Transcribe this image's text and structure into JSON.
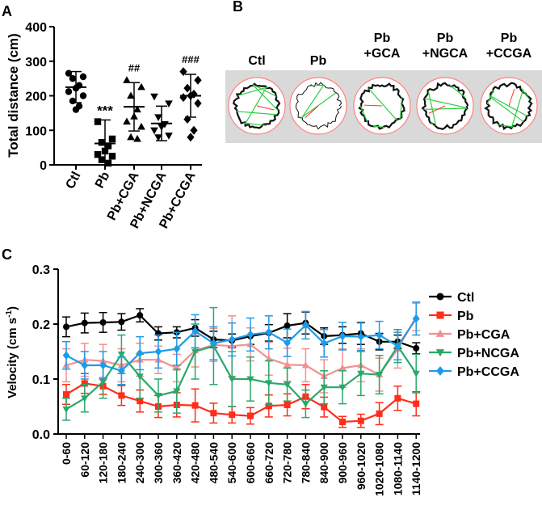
{
  "panels": {
    "a": "A",
    "b": "B",
    "c": "C"
  },
  "chart_data": [
    {
      "panel": "A",
      "type": "scatter",
      "ylabel": "Total distance (cm)",
      "ylim": [
        0,
        400
      ],
      "yticks": [
        0,
        100,
        200,
        300,
        400
      ],
      "groups": [
        {
          "name": "Ctl",
          "marker": "circle",
          "mean": 225,
          "sd": 45,
          "points": [
            265,
            255,
            250,
            230,
            222,
            212,
            200,
            185,
            170,
            160
          ]
        },
        {
          "name": "Pb",
          "marker": "square",
          "mean": 62,
          "sd": 68,
          "sig": "***",
          "points": [
            125,
            75,
            65,
            55,
            40,
            30,
            25,
            15,
            5
          ]
        },
        {
          "name": "Pb+CGA",
          "marker": "triangle-up",
          "mean": 168,
          "sd": 70,
          "sig": "##",
          "points": [
            245,
            225,
            200,
            160,
            140,
            125,
            110,
            80,
            75
          ]
        },
        {
          "name": "Pb+NCGA",
          "marker": "triangle-down",
          "mean": 120,
          "sd": 50,
          "points": [
            198,
            178,
            138,
            118,
            110,
            100,
            85,
            80
          ]
        },
        {
          "name": "Pb+CCGA",
          "marker": "diamond",
          "mean": 200,
          "sd": 62,
          "sig": "###",
          "points": [
            270,
            245,
            222,
            205,
            200,
            195,
            178,
            132,
            100,
            80
          ]
        }
      ]
    },
    {
      "panel": "C",
      "type": "line",
      "ylabel": "Velocity (cm s",
      "ylabel_sup": "-1",
      "ylabel_end": ")",
      "ylim": [
        0,
        0.3
      ],
      "yticks": [
        "0.0",
        "0.1",
        "0.2",
        "0.3"
      ],
      "categories": [
        "0-60",
        "60-120",
        "120-180",
        "180-240",
        "240-300",
        "300-360",
        "360-420",
        "420-480",
        "480-540",
        "540-600",
        "600-660",
        "660-720",
        "720-780",
        "780-840",
        "840-900",
        "900-960",
        "960-1020",
        "1020-1080",
        "1080-1140",
        "1140-1200"
      ],
      "legend_position": "right",
      "series": [
        {
          "name": "Ctl",
          "color": "#000000",
          "marker": "circle",
          "values": [
            0.195,
            0.202,
            0.203,
            0.204,
            0.216,
            0.183,
            0.185,
            0.193,
            0.172,
            0.17,
            0.178,
            0.184,
            0.197,
            0.202,
            0.178,
            0.18,
            0.183,
            0.168,
            0.168,
            0.156
          ],
          "errors": [
            0.018,
            0.018,
            0.018,
            0.015,
            0.012,
            0.012,
            0.01,
            0.015,
            0.015,
            0.012,
            0.015,
            0.015,
            0.022,
            0.02,
            0.015,
            0.015,
            0.02,
            0.015,
            0.012,
            0.01
          ]
        },
        {
          "name": "Pb",
          "color": "#ff2d1a",
          "marker": "square",
          "values": [
            0.072,
            0.092,
            0.087,
            0.07,
            0.06,
            0.05,
            0.053,
            0.052,
            0.038,
            0.035,
            0.033,
            0.051,
            0.053,
            0.068,
            0.049,
            0.022,
            0.024,
            0.037,
            0.065,
            0.055
          ],
          "errors": [
            0.018,
            0.018,
            0.015,
            0.018,
            0.02,
            0.02,
            0.022,
            0.03,
            0.018,
            0.015,
            0.015,
            0.02,
            0.02,
            0.022,
            0.018,
            0.01,
            0.012,
            0.02,
            0.022,
            0.022
          ]
        },
        {
          "name": "Pb+CGA",
          "color": "#f29090",
          "marker": "triangle-up",
          "values": [
            0.125,
            0.135,
            0.133,
            0.125,
            0.135,
            0.135,
            0.12,
            0.152,
            0.162,
            0.16,
            0.163,
            0.137,
            0.126,
            0.125,
            0.105,
            0.12,
            0.125,
            0.108,
            0.155,
            0.213
          ],
          "errors": [
            0.03,
            0.03,
            0.03,
            0.03,
            0.03,
            0.025,
            0.025,
            0.03,
            0.03,
            0.055,
            0.03,
            0.03,
            0.03,
            0.03,
            0.03,
            0.035,
            0.03,
            0.03,
            0.035,
            0.025
          ]
        },
        {
          "name": "Pb+NCGA",
          "color": "#2aa86a",
          "marker": "triangle-down",
          "values": [
            0.045,
            0.065,
            0.095,
            0.145,
            0.105,
            0.07,
            0.078,
            0.15,
            0.16,
            0.1,
            0.1,
            0.093,
            0.09,
            0.055,
            0.085,
            0.085,
            0.11,
            0.108,
            0.16,
            0.11
          ],
          "errors": [
            0.02,
            0.025,
            0.03,
            0.035,
            0.04,
            0.03,
            0.04,
            0.05,
            0.07,
            0.05,
            0.04,
            0.04,
            0.03,
            0.025,
            0.03,
            0.03,
            0.04,
            0.035,
            0.03,
            0.035
          ]
        },
        {
          "name": "Pb+CCGA",
          "color": "#1e9be8",
          "marker": "diamond",
          "values": [
            0.143,
            0.125,
            0.125,
            0.115,
            0.147,
            0.15,
            0.155,
            0.187,
            0.165,
            0.172,
            0.181,
            0.185,
            0.166,
            0.198,
            0.165,
            0.178,
            0.177,
            0.18,
            0.16,
            0.21
          ],
          "errors": [
            0.025,
            0.025,
            0.025,
            0.025,
            0.03,
            0.03,
            0.03,
            0.03,
            0.03,
            0.03,
            0.03,
            0.03,
            0.025,
            0.025,
            0.025,
            0.025,
            0.025,
            0.025,
            0.025,
            0.03
          ]
        }
      ]
    }
  ],
  "panel_b": {
    "groups": [
      {
        "line1": "Ctl",
        "line2": ""
      },
      {
        "line1": "Pb",
        "line2": ""
      },
      {
        "line1": "Pb",
        "line2": "+GCA"
      },
      {
        "line1": "Pb",
        "line2": "+NGCA"
      },
      {
        "line1": "Pb",
        "line2": "+CCGA"
      }
    ],
    "track_colors": {
      "arena": "#ff8080",
      "path_a": "#2ecc40",
      "path_b": "#111111",
      "path_c": "#ff3030"
    }
  }
}
